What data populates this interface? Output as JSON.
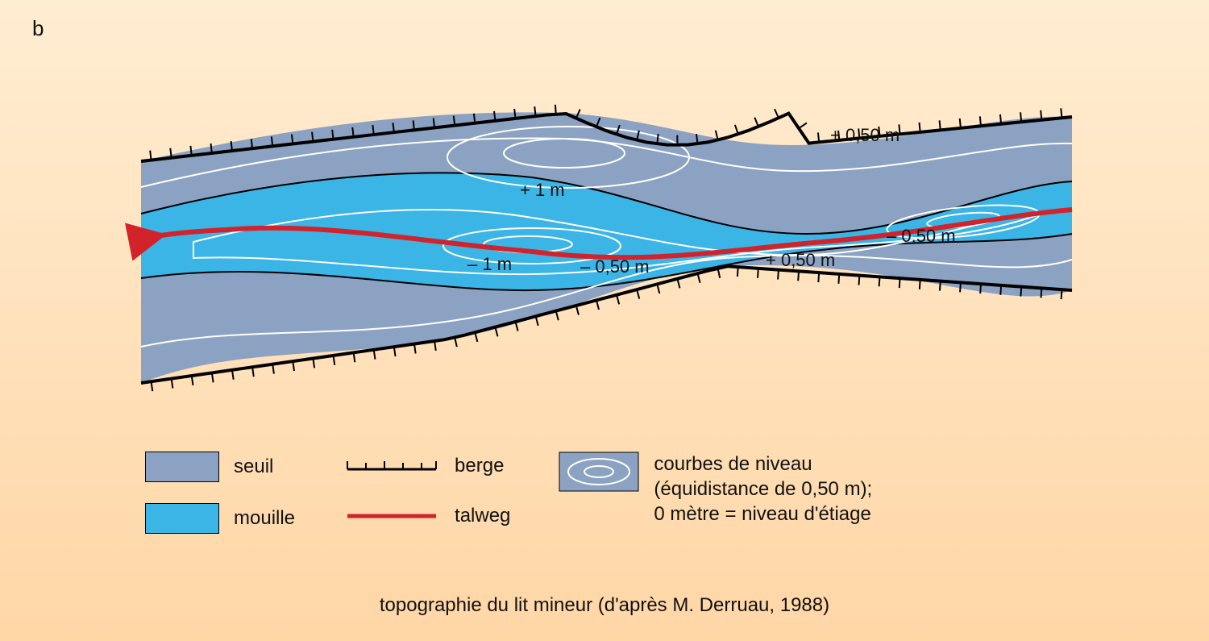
{
  "panel_label": "b",
  "caption": "topographie du lit mineur (d'après M. Derruau, 1988)",
  "background": {
    "gradient_top": "#ffedd2",
    "gradient_bottom": "#ffd6a6"
  },
  "colors": {
    "seuil": "#8ca2c3",
    "mouille": "#3bb4e6",
    "bank_stroke": "#000000",
    "zero_contour": "#000000",
    "white_contour": "#ffffff",
    "talweg": "#d2232a",
    "text": "#111111"
  },
  "stroke_widths": {
    "bank": 4,
    "zero_contour": 2,
    "white_contour": 2,
    "talweg": 6,
    "legend_talweg": 5
  },
  "diagram_labels": {
    "plus1": "+ 1 m",
    "plus050_top": "+ 0,50 m",
    "minus1": "– 1 m",
    "minus050_mid": "– 0,50 m",
    "plus050_bottom": "+ 0,50 m",
    "minus050_right": "– 0,50 m"
  },
  "legend": {
    "seuil": "seuil",
    "mouille": "mouille",
    "berge": "berge",
    "talweg": "talweg",
    "courbes": "courbes de niveau\n(équidistance de 0,50 m);\n0 mètre = niveau d'étiage"
  }
}
